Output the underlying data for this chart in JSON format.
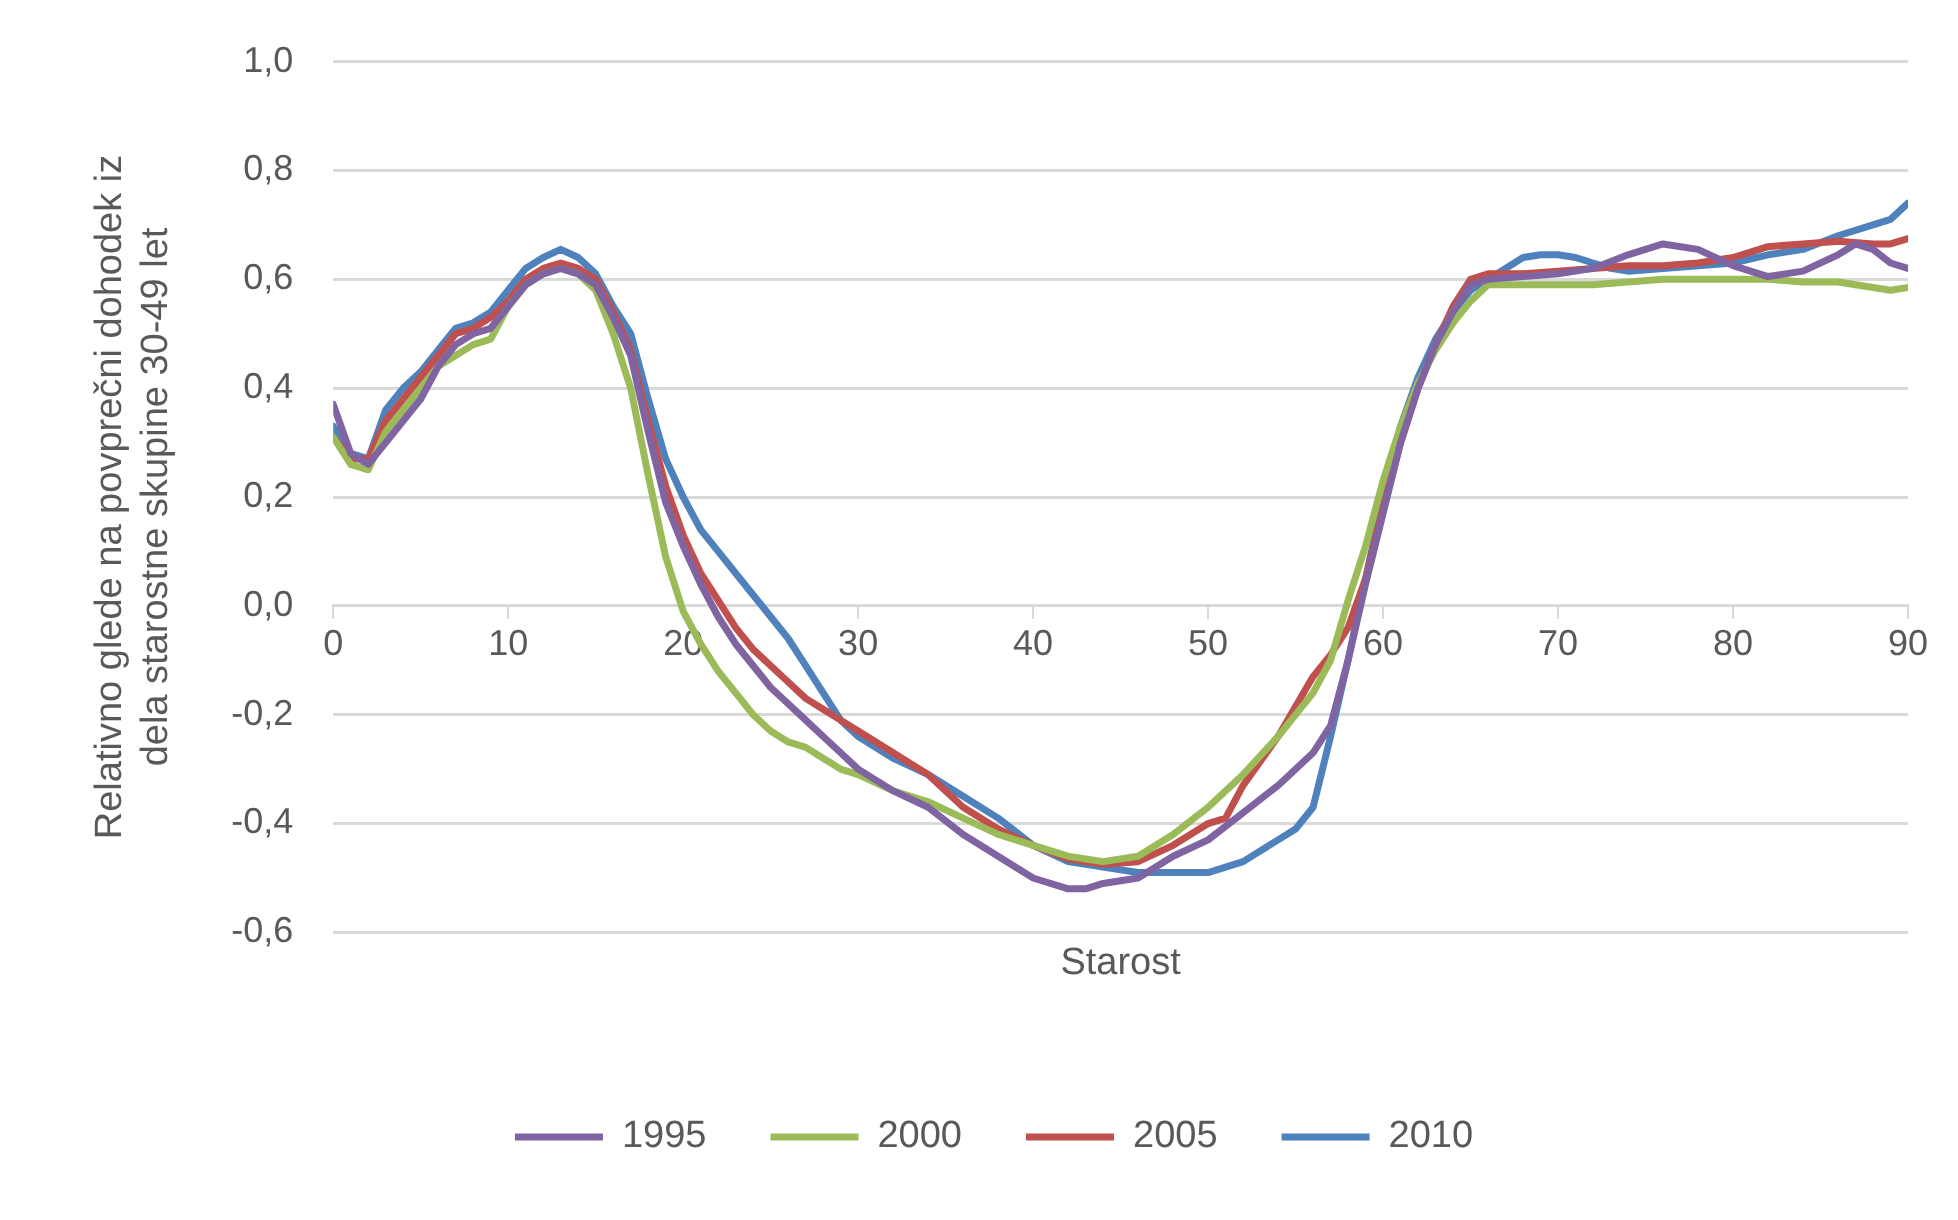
{
  "chart_data": {
    "type": "line",
    "xlabel": "Starost",
    "ylabel": "Relativno glede na povprečni dohodek iz\ndela starostne skupine 30-49 let",
    "xlim": [
      0,
      90
    ],
    "xticks": [
      0,
      10,
      20,
      30,
      40,
      50,
      60,
      70,
      80,
      90
    ],
    "ylim": [
      -0.6,
      1.0
    ],
    "yticks": [
      {
        "value": -0.6,
        "label": "-0,6"
      },
      {
        "value": -0.4,
        "label": "-0,4"
      },
      {
        "value": -0.2,
        "label": "-0,2"
      },
      {
        "value": 0,
        "label": "0,0"
      },
      {
        "value": 0.2,
        "label": "0,2"
      },
      {
        "value": 0.4,
        "label": "0,4"
      },
      {
        "value": 0.6,
        "label": "0,6"
      },
      {
        "value": 0.8,
        "label": "0,8"
      },
      {
        "value": 1.0,
        "label": "1,0"
      }
    ],
    "grid": "y",
    "legend": "bottom",
    "marker": "none",
    "line_style": "solid",
    "series": [
      {
        "name": "1995",
        "color": "#8064a2",
        "x": [
          0,
          1,
          2,
          3,
          4,
          5,
          6,
          7,
          8,
          9,
          10,
          11,
          12,
          13,
          14,
          15,
          16,
          17,
          18,
          19,
          20,
          21,
          22,
          23,
          24,
          25,
          26,
          27,
          28,
          29,
          30,
          32,
          34,
          36,
          38,
          40,
          42,
          43,
          44,
          46,
          48,
          50,
          52,
          54,
          56,
          57,
          58,
          59,
          60,
          61,
          62,
          63,
          64,
          65,
          66,
          68,
          70,
          72,
          74,
          76,
          78,
          80,
          82,
          84,
          86,
          87,
          88,
          89,
          90
        ],
        "values": [
          0.37,
          0.28,
          0.26,
          0.3,
          0.34,
          0.38,
          0.44,
          0.48,
          0.5,
          0.51,
          0.55,
          0.59,
          0.61,
          0.62,
          0.61,
          0.59,
          0.53,
          0.46,
          0.32,
          0.19,
          0.11,
          0.04,
          -0.02,
          -0.07,
          -0.11,
          -0.15,
          -0.18,
          -0.21,
          -0.24,
          -0.27,
          -0.3,
          -0.34,
          -0.37,
          -0.42,
          -0.46,
          -0.5,
          -0.52,
          -0.52,
          -0.51,
          -0.5,
          -0.46,
          -0.43,
          -0.38,
          -0.33,
          -0.27,
          -0.22,
          -0.1,
          0.04,
          0.17,
          0.3,
          0.4,
          0.48,
          0.54,
          0.59,
          0.6,
          0.605,
          0.61,
          0.62,
          0.645,
          0.665,
          0.655,
          0.625,
          0.605,
          0.615,
          0.645,
          0.665,
          0.655,
          0.63,
          0.62
        ]
      },
      {
        "name": "2000",
        "color": "#9bbb59",
        "x": [
          0,
          1,
          2,
          3,
          4,
          5,
          6,
          7,
          8,
          9,
          10,
          11,
          12,
          13,
          14,
          15,
          16,
          17,
          18,
          19,
          20,
          21,
          22,
          23,
          24,
          25,
          26,
          27,
          28,
          29,
          30,
          32,
          34,
          36,
          38,
          40,
          42,
          44,
          46,
          48,
          50,
          52,
          54,
          56,
          57,
          58,
          59,
          60,
          61,
          62,
          63,
          64,
          65,
          66,
          68,
          70,
          72,
          74,
          76,
          80,
          82,
          84,
          86,
          88,
          89,
          90
        ],
        "values": [
          0.31,
          0.26,
          0.25,
          0.32,
          0.36,
          0.4,
          0.44,
          0.46,
          0.48,
          0.49,
          0.55,
          0.59,
          0.61,
          0.62,
          0.61,
          0.58,
          0.5,
          0.4,
          0.24,
          0.09,
          -0.01,
          -0.07,
          -0.12,
          -0.16,
          -0.2,
          -0.23,
          -0.25,
          -0.26,
          -0.28,
          -0.3,
          -0.31,
          -0.34,
          -0.36,
          -0.39,
          -0.42,
          -0.44,
          -0.46,
          -0.47,
          -0.46,
          -0.42,
          -0.37,
          -0.31,
          -0.24,
          -0.16,
          -0.1,
          0.01,
          0.11,
          0.23,
          0.33,
          0.41,
          0.47,
          0.52,
          0.56,
          0.59,
          0.59,
          0.59,
          0.59,
          0.595,
          0.6,
          0.6,
          0.6,
          0.595,
          0.595,
          0.585,
          0.58,
          0.585
        ]
      },
      {
        "name": "2005",
        "color": "#c0504d",
        "x": [
          0,
          1,
          2,
          3,
          4,
          5,
          6,
          7,
          8,
          9,
          10,
          11,
          12,
          13,
          14,
          15,
          16,
          17,
          18,
          19,
          20,
          21,
          22,
          23,
          24,
          25,
          26,
          27,
          28,
          29,
          30,
          32,
          34,
          36,
          38,
          40,
          42,
          44,
          46,
          48,
          50,
          51,
          52,
          54,
          56,
          57,
          58,
          59,
          60,
          61,
          62,
          63,
          64,
          65,
          66,
          68,
          70,
          72,
          74,
          76,
          78,
          80,
          82,
          84,
          86,
          88,
          89,
          90
        ],
        "values": [
          0.31,
          0.27,
          0.27,
          0.34,
          0.38,
          0.42,
          0.46,
          0.5,
          0.51,
          0.53,
          0.56,
          0.6,
          0.62,
          0.63,
          0.62,
          0.6,
          0.54,
          0.47,
          0.34,
          0.22,
          0.13,
          0.06,
          0.01,
          -0.04,
          -0.08,
          -0.11,
          -0.14,
          -0.17,
          -0.19,
          -0.21,
          -0.23,
          -0.27,
          -0.31,
          -0.37,
          -0.41,
          -0.44,
          -0.465,
          -0.475,
          -0.47,
          -0.44,
          -0.4,
          -0.39,
          -0.33,
          -0.24,
          -0.13,
          -0.09,
          -0.04,
          0.05,
          0.18,
          0.3,
          0.4,
          0.48,
          0.55,
          0.6,
          0.61,
          0.61,
          0.615,
          0.62,
          0.625,
          0.625,
          0.63,
          0.64,
          0.66,
          0.665,
          0.67,
          0.665,
          0.665,
          0.675
        ]
      },
      {
        "name": "2010",
        "color": "#4f81bd",
        "x": [
          0,
          1,
          2,
          3,
          4,
          5,
          6,
          7,
          8,
          9,
          10,
          11,
          12,
          13,
          14,
          15,
          16,
          17,
          18,
          19,
          20,
          21,
          22,
          23,
          24,
          25,
          26,
          27,
          28,
          29,
          30,
          32,
          34,
          36,
          38,
          40,
          42,
          44,
          46,
          48,
          50,
          52,
          54,
          55,
          56,
          57,
          58,
          59,
          60,
          61,
          62,
          63,
          64,
          65,
          66,
          67,
          68,
          69,
          70,
          71,
          72,
          73,
          74,
          76,
          78,
          80,
          82,
          84,
          86,
          88,
          89,
          90
        ],
        "values": [
          0.33,
          0.28,
          0.27,
          0.36,
          0.4,
          0.43,
          0.47,
          0.51,
          0.52,
          0.54,
          0.58,
          0.62,
          0.64,
          0.655,
          0.64,
          0.61,
          0.55,
          0.5,
          0.38,
          0.27,
          0.2,
          0.14,
          0.1,
          0.06,
          0.02,
          -0.02,
          -0.06,
          -0.11,
          -0.16,
          -0.21,
          -0.24,
          -0.28,
          -0.31,
          -0.35,
          -0.39,
          -0.44,
          -0.47,
          -0.48,
          -0.49,
          -0.49,
          -0.49,
          -0.47,
          -0.43,
          -0.41,
          -0.37,
          -0.24,
          -0.1,
          0.05,
          0.2,
          0.33,
          0.42,
          0.49,
          0.54,
          0.58,
          0.6,
          0.62,
          0.64,
          0.645,
          0.645,
          0.64,
          0.63,
          0.62,
          0.615,
          0.62,
          0.625,
          0.63,
          0.645,
          0.655,
          0.68,
          0.7,
          0.71,
          0.74
        ]
      }
    ]
  }
}
